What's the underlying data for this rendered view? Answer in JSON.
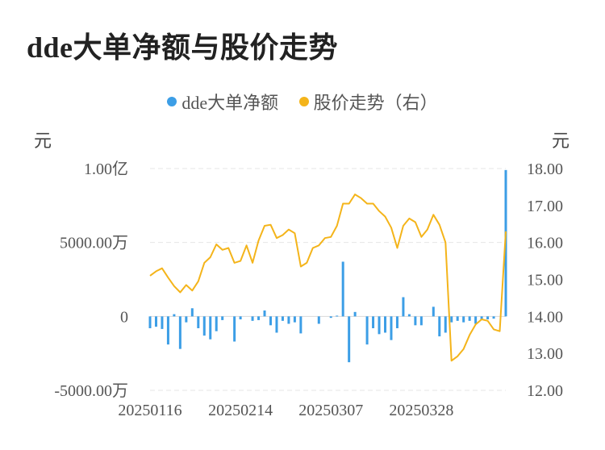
{
  "title": "dde大单净额与股价走势",
  "colors": {
    "bar": "#3c9ee6",
    "line": "#f4b41a",
    "grid": "#e6e6e6",
    "zero": "#d9d9d9"
  },
  "chart_data": {
    "type": "bar+line",
    "title": "dde大单净额与股价走势",
    "legend": [
      {
        "label": "dde大单净额",
        "color": "#3c9ee6"
      },
      {
        "label": "股价走势（右）",
        "color": "#f4b41a"
      }
    ],
    "left_axis": {
      "unit": "元",
      "ticks": [
        "1.00亿",
        "5000.00万",
        "0",
        "-5000.00万"
      ],
      "range": [
        -5000,
        10000
      ]
    },
    "right_axis": {
      "unit": "元",
      "ticks": [
        "18.00",
        "17.00",
        "16.00",
        "15.00",
        "14.00",
        "13.00",
        "12.00"
      ],
      "range": [
        12,
        18
      ]
    },
    "x_tick_labels": [
      "20250116",
      "20250214",
      "20250307",
      "20250328"
    ],
    "x_tick_index": [
      0,
      15,
      30,
      45
    ],
    "series": [
      {
        "name": "dde大单净额",
        "unit": "万元",
        "type": "bar",
        "axis": "left",
        "values": [
          -800,
          -700,
          -850,
          -1900,
          150,
          -2200,
          -400,
          550,
          -800,
          -1300,
          -1550,
          -1000,
          -250,
          0,
          -1700,
          -200,
          0,
          -300,
          -250,
          400,
          -600,
          -1100,
          -300,
          -500,
          -400,
          -1150,
          0,
          0,
          -500,
          0,
          -100,
          50,
          3700,
          -3100,
          300,
          0,
          -1900,
          -800,
          -1200,
          -1100,
          -1600,
          -800,
          1300,
          150,
          -600,
          -600,
          0,
          650,
          -1350,
          -1100,
          -400,
          -300,
          -400,
          -300,
          -500,
          -200,
          -200,
          -150,
          0,
          9900
        ]
      },
      {
        "name": "股价走势（右）",
        "unit": "元",
        "type": "line",
        "axis": "right",
        "values": [
          15.1,
          15.22,
          15.3,
          15.05,
          14.82,
          14.65,
          14.85,
          14.7,
          14.95,
          15.45,
          15.6,
          15.95,
          15.8,
          15.85,
          15.45,
          15.5,
          15.92,
          15.45,
          16.05,
          16.45,
          16.48,
          16.12,
          16.2,
          16.35,
          16.25,
          15.35,
          15.45,
          15.85,
          15.92,
          16.12,
          16.15,
          16.45,
          17.05,
          17.05,
          17.3,
          17.2,
          17.05,
          17.05,
          16.85,
          16.7,
          16.4,
          15.85,
          16.45,
          16.65,
          16.55,
          16.15,
          16.35,
          16.75,
          16.48,
          16.0,
          12.8,
          12.92,
          13.12,
          13.5,
          13.78,
          13.92,
          13.88,
          13.65,
          13.6,
          16.3
        ]
      }
    ]
  }
}
